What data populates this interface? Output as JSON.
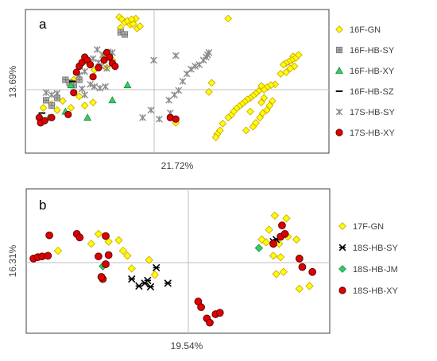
{
  "chart_data": [
    {
      "type": "scatter",
      "panel": "a",
      "xlabel": "21.72%",
      "ylabel": "13.69%",
      "xlim": [
        -1.05,
        1.15
      ],
      "ylim": [
        -0.85,
        1.05
      ],
      "zero_lines": true,
      "legend_position": "right",
      "series": [
        {
          "name": "16F-GN",
          "marker": "diamond",
          "color": "#ffff00",
          "stroke": "#c8a000",
          "points": [
            [
              -0.37,
              0.95
            ],
            [
              -0.35,
              0.92
            ],
            [
              -0.33,
              0.88
            ],
            [
              -0.31,
              0.9
            ],
            [
              -0.29,
              0.85
            ],
            [
              -0.27,
              0.86
            ],
            [
              -0.25,
              0.93
            ],
            [
              -0.24,
              0.8
            ],
            [
              -0.22,
              0.83
            ],
            [
              -0.36,
              0.81
            ],
            [
              -0.28,
              0.92
            ],
            [
              0.42,
              0.93
            ],
            [
              0.89,
              0.43
            ],
            [
              0.91,
              0.41
            ],
            [
              0.93,
              0.45
            ],
            [
              0.88,
              0.38
            ],
            [
              0.86,
              0.36
            ],
            [
              0.84,
              0.34
            ],
            [
              0.82,
              0.32
            ],
            [
              0.9,
              0.3
            ],
            [
              0.87,
              0.27
            ],
            [
              0.84,
              0.22
            ],
            [
              0.8,
              0.2
            ],
            [
              0.76,
              0.06
            ],
            [
              0.73,
              0.05
            ],
            [
              0.7,
              0.02
            ],
            [
              0.68,
              -0.01
            ],
            [
              0.66,
              0.04
            ],
            [
              0.64,
              -0.03
            ],
            [
              0.62,
              -0.06
            ],
            [
              0.6,
              -0.09
            ],
            [
              0.58,
              -0.12
            ],
            [
              0.56,
              -0.14
            ],
            [
              0.54,
              -0.17
            ],
            [
              0.52,
              -0.2
            ],
            [
              0.5,
              -0.23
            ],
            [
              0.48,
              -0.26
            ],
            [
              0.46,
              -0.3
            ],
            [
              0.44,
              -0.35
            ],
            [
              0.42,
              -0.38
            ],
            [
              0.38,
              -0.46
            ],
            [
              0.36,
              -0.55
            ],
            [
              0.34,
              -0.6
            ],
            [
              0.33,
              -0.64
            ],
            [
              0.55,
              -0.55
            ],
            [
              0.6,
              -0.5
            ],
            [
              0.62,
              -0.45
            ],
            [
              0.65,
              -0.38
            ],
            [
              0.67,
              -0.32
            ],
            [
              0.7,
              -0.28
            ],
            [
              0.72,
              -0.22
            ],
            [
              0.74,
              -0.16
            ],
            [
              0.66,
              -0.18
            ],
            [
              0.68,
              -0.12
            ],
            [
              0.58,
              -0.3
            ],
            [
              0.28,
              -0.04
            ],
            [
              0.3,
              0.08
            ],
            [
              0.04,
              -0.45
            ],
            [
              -0.92,
              -0.25
            ],
            [
              -0.86,
              -0.2
            ],
            [
              -0.82,
              -0.28
            ],
            [
              -0.78,
              -0.16
            ],
            [
              -0.72,
              -0.25
            ],
            [
              -0.66,
              -0.1
            ],
            [
              -0.62,
              -0.22
            ],
            [
              -0.56,
              -0.18
            ],
            [
              -0.7,
              0.12
            ],
            [
              -0.6,
              0.35
            ],
            [
              -0.55,
              0.25
            ],
            [
              -0.48,
              0.45
            ],
            [
              -0.42,
              0.38
            ],
            [
              -0.46,
              0.28
            ]
          ]
        },
        {
          "name": "16F-HB-SY",
          "marker": "square-cross",
          "color": "#b0b0b0",
          "stroke": "#707070",
          "points": [
            [
              -0.9,
              -0.15
            ],
            [
              -0.86,
              -0.22
            ],
            [
              -0.82,
              -0.12
            ],
            [
              -0.76,
              0.12
            ],
            [
              -0.73,
              0.08
            ],
            [
              -0.7,
              0.05
            ],
            [
              -0.66,
              0.12
            ],
            [
              -0.36,
              0.75
            ],
            [
              -0.33,
              0.72
            ]
          ]
        },
        {
          "name": "16F-HB-XY",
          "marker": "triangle",
          "color": "#33cc66",
          "stroke": "#1a8a3a",
          "points": [
            [
              -0.88,
              -0.38
            ],
            [
              -0.76,
              -0.3
            ],
            [
              -0.72,
              0.05
            ],
            [
              -0.6,
              -0.38
            ],
            [
              -0.42,
              -0.15
            ],
            [
              -0.31,
              0.05
            ]
          ]
        },
        {
          "name": "16F-HB-SZ",
          "marker": "dash",
          "color": "#000000",
          "stroke": "#000000",
          "points": [
            [
              -0.93,
              -0.32
            ],
            [
              -0.71,
              0.1
            ]
          ]
        },
        {
          "name": "17S-HB-SY",
          "marker": "star",
          "color": "#9a9a9a",
          "stroke": "#8a8a8a",
          "points": [
            [
              -0.53,
              0.52
            ],
            [
              -0.49,
              0.45
            ],
            [
              -0.45,
              0.49
            ],
            [
              -0.42,
              0.48
            ],
            [
              -0.5,
              0.3
            ],
            [
              -0.46,
              0.27
            ],
            [
              -0.52,
              0.35
            ],
            [
              -0.56,
              0.4
            ],
            [
              -0.62,
              0.23
            ],
            [
              -0.66,
              0.18
            ],
            [
              -0.58,
              0.06
            ],
            [
              -0.55,
              0.03
            ],
            [
              -0.51,
              0.01
            ],
            [
              -0.47,
              0.03
            ],
            [
              -0.62,
              -0.08
            ],
            [
              -0.64,
              0.0
            ],
            [
              -0.9,
              -0.05
            ],
            [
              -0.86,
              -0.08
            ],
            [
              -0.82,
              -0.06
            ],
            [
              -0.12,
              0.38
            ],
            [
              -0.01,
              -0.15
            ],
            [
              0.03,
              -0.08
            ],
            [
              0.06,
              -0.02
            ],
            [
              0.09,
              0.1
            ],
            [
              0.12,
              0.2
            ],
            [
              0.15,
              0.26
            ],
            [
              0.18,
              0.3
            ],
            [
              0.21,
              0.32
            ],
            [
              0.24,
              0.38
            ],
            [
              0.27,
              0.45
            ],
            [
              0.28,
              0.48
            ],
            [
              0.26,
              0.42
            ],
            [
              -0.08,
              -0.4
            ],
            [
              -0.14,
              -0.28
            ],
            [
              -0.2,
              -0.38
            ],
            [
              0.0,
              -0.32
            ],
            [
              0.04,
              0.44
            ]
          ]
        },
        {
          "name": "17S-HB-XY",
          "marker": "circle",
          "color": "#e00000",
          "stroke": "#600000",
          "points": [
            [
              -0.95,
              -0.38
            ],
            [
              -0.94,
              -0.45
            ],
            [
              -0.91,
              -0.42
            ],
            [
              -0.86,
              -0.38
            ],
            [
              -0.74,
              -0.34
            ],
            [
              -0.7,
              -0.05
            ],
            [
              -0.68,
              0.22
            ],
            [
              -0.66,
              0.3
            ],
            [
              -0.64,
              0.35
            ],
            [
              -0.62,
              0.42
            ],
            [
              -0.6,
              0.38
            ],
            [
              -0.58,
              0.32
            ],
            [
              -0.56,
              0.16
            ],
            [
              -0.52,
              0.28
            ],
            [
              -0.48,
              0.38
            ],
            [
              -0.46,
              0.48
            ],
            [
              -0.44,
              0.42
            ],
            [
              -0.42,
              0.34
            ],
            [
              -0.4,
              0.3
            ],
            [
              0.0,
              -0.38
            ],
            [
              0.04,
              -0.4
            ]
          ]
        }
      ]
    },
    {
      "type": "scatter",
      "panel": "b",
      "xlabel": "19.54%",
      "ylabel": "16.31%",
      "xlim": [
        -1.05,
        1.05
      ],
      "ylim": [
        -1.05,
        1.0
      ],
      "zero_lines": true,
      "legend_position": "right",
      "series": [
        {
          "name": "17F-GN",
          "marker": "diamond",
          "color": "#ffff00",
          "stroke": "#c8a000",
          "points": [
            [
              -0.83,
              0.12
            ],
            [
              -0.6,
              0.22
            ],
            [
              -0.55,
              0.36
            ],
            [
              -0.48,
              0.25
            ],
            [
              -0.41,
              0.27
            ],
            [
              -0.38,
              0.12
            ],
            [
              -0.35,
              0.05
            ],
            [
              -0.32,
              -0.13
            ],
            [
              -0.2,
              -0.01
            ],
            [
              -0.16,
              -0.22
            ],
            [
              0.67,
              0.62
            ],
            [
              0.75,
              0.58
            ],
            [
              0.63,
              0.42
            ],
            [
              0.58,
              0.28
            ],
            [
              0.61,
              0.24
            ],
            [
              0.7,
              0.22
            ],
            [
              0.76,
              0.32
            ],
            [
              0.82,
              0.28
            ],
            [
              0.66,
              0.05
            ],
            [
              0.71,
              0.03
            ],
            [
              0.73,
              -0.18
            ],
            [
              0.68,
              -0.21
            ],
            [
              0.91,
              -0.38
            ],
            [
              0.84,
              -0.42
            ]
          ]
        },
        {
          "name": "18S-HB-SY",
          "marker": "asterisk",
          "color": "#000000",
          "stroke": "#000000",
          "points": [
            [
              0.66,
              0.25
            ],
            [
              0.68,
              0.28
            ],
            [
              -0.23,
              -0.34
            ],
            [
              -0.21,
              -0.3
            ],
            [
              -0.27,
              -0.38
            ],
            [
              -0.19,
              -0.39
            ],
            [
              -0.15,
              -0.12
            ],
            [
              -0.32,
              -0.28
            ],
            [
              -0.07,
              -0.34
            ]
          ]
        },
        {
          "name": "18S-HB-JM",
          "marker": "diamond",
          "color": "#33cc66",
          "stroke": "#1a8a3a",
          "points": [
            [
              -0.52,
              -0.1
            ],
            [
              0.56,
              0.16
            ]
          ]
        },
        {
          "name": "18S-HB-XY",
          "marker": "circle",
          "color": "#e00000",
          "stroke": "#600000",
          "points": [
            [
              -1.0,
              0.01
            ],
            [
              -0.97,
              0.03
            ],
            [
              -0.94,
              0.04
            ],
            [
              -0.9,
              0.05
            ],
            [
              -0.89,
              0.34
            ],
            [
              -0.7,
              0.36
            ],
            [
              -0.68,
              0.31
            ],
            [
              -0.5,
              0.33
            ],
            [
              -0.55,
              0.04
            ],
            [
              -0.48,
              0.06
            ],
            [
              -0.52,
              -0.28
            ],
            [
              -0.53,
              -0.25
            ],
            [
              -0.5,
              -0.07
            ],
            [
              0.14,
              -0.6
            ],
            [
              0.16,
              -0.68
            ],
            [
              0.2,
              -0.84
            ],
            [
              0.22,
              -0.9
            ],
            [
              0.26,
              -0.78
            ],
            [
              0.29,
              -0.76
            ],
            [
              0.66,
              0.22
            ],
            [
              0.71,
              0.32
            ],
            [
              0.74,
              0.36
            ],
            [
              0.72,
              0.48
            ],
            [
              0.84,
              0.01
            ],
            [
              0.86,
              -0.11
            ],
            [
              0.93,
              -0.18
            ]
          ]
        }
      ]
    }
  ]
}
